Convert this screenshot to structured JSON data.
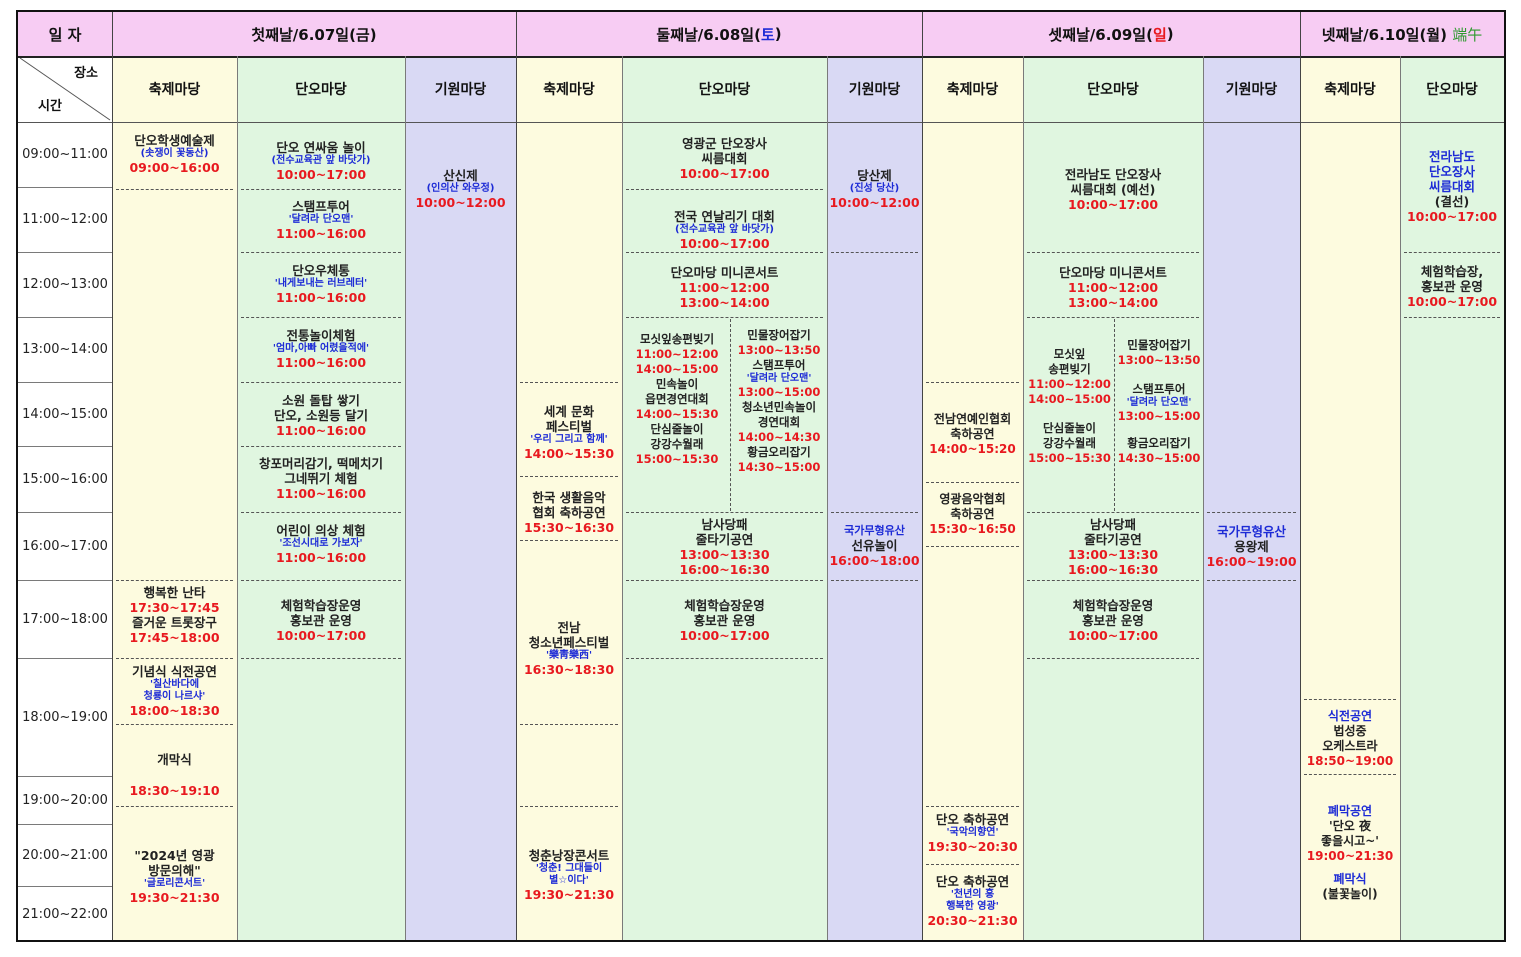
{
  "header": {
    "date_label": "일 자",
    "day1": {
      "text": "첫째날/6.07일(금)"
    },
    "day2": {
      "prefix": "둘째날/6.08일(",
      "mark": "토",
      "suffix": ")"
    },
    "day3": {
      "prefix": "셋째날/6.09일(",
      "mark": "일",
      "suffix": ")"
    },
    "day4": {
      "text": "넷째날/6.10일(월)",
      "extra": "端午"
    }
  },
  "corner": {
    "place": "장소",
    "time": "시간"
  },
  "venues": {
    "festival": "축제마당",
    "dano": "단오마당",
    "prayer": "기원마당"
  },
  "times": [
    "09:00~11:00",
    "11:00~12:00",
    "12:00~13:00",
    "13:00~14:00",
    "14:00~15:00",
    "15:00~16:00",
    "16:00~17:00",
    "17:00~18:00",
    "18:00~19:00",
    "19:00~20:00",
    "20:00~21:00",
    "21:00~22:00"
  ],
  "events": {
    "d1f_1": {
      "t1": "단오학생예술제",
      "b": "(솟쟁이 꽃동산)",
      "r": "09:00~16:00"
    },
    "d1f_2": {
      "t1": "행복한 난타",
      "r1": "17:30~17:45",
      "t2": "즐거운 트롯장구",
      "r2": "17:45~18:00"
    },
    "d1f_3": {
      "t1": "기념식 식전공연",
      "b1": "'칠산바다에",
      "b2": "청룡이 나르샤'",
      "r": "18:00~18:30"
    },
    "d1f_4": {
      "t1": "개막식",
      "r": "18:30~19:10"
    },
    "d1f_5": {
      "t1": "\"2024년 영광",
      "t2": "방문의해\"",
      "b": "'글로리콘서트'",
      "r": "19:30~21:30"
    },
    "d1d_1": {
      "t1": "단오 연싸움 놀이",
      "b": "(전수교육관 앞 바닷가)",
      "r": "10:00~17:00"
    },
    "d1d_2": {
      "t1": "스탬프투어",
      "b": "'달려라 단오맨'",
      "r": "11:00~16:00"
    },
    "d1d_3": {
      "t1": "단오우체통",
      "b": "'내게보내는 러브레터'",
      "r": "11:00~16:00"
    },
    "d1d_4": {
      "t1": "전통놀이체험",
      "b": "'엄마,아빠 어렸을적에'",
      "r": "11:00~16:00"
    },
    "d1d_5": {
      "t1": "소원 돌탑 쌓기",
      "t2": "단오, 소원등 달기",
      "r": "11:00~16:00"
    },
    "d1d_6": {
      "t1": "창포머리감기, 떡메치기",
      "t2": "그네뛰기 체험",
      "r": "11:00~16:00"
    },
    "d1d_7": {
      "t1": "어린이 의상 체험",
      "b": "'조선시대로 가보자'",
      "r": "11:00~16:00"
    },
    "d1d_8": {
      "t1": "체험학습장운영",
      "t2": "홍보관 운영",
      "r": "10:00~17:00"
    },
    "d1p_1": {
      "t1": "산신제",
      "b": "(인의산 와우정)",
      "r": "10:00~12:00"
    },
    "d2f_1": {
      "t1": "세계 문화",
      "t2": "페스티벌",
      "b": "'우리 그리고 함께'",
      "r": "14:00~15:30"
    },
    "d2f_2": {
      "t1": "한국 생활음악",
      "t2": "협회 축하공연",
      "r": "15:30~16:30"
    },
    "d2f_3": {
      "t1": "전남",
      "t2": "청소년페스티벌",
      "b": "'樂靑樂西'",
      "r": "16:30~18:30"
    },
    "d2f_4": {
      "t1": "청춘낭장콘서트",
      "b1": "'청춘! 그대들이",
      "b2": "별☆이다'",
      "r": "19:30~21:30"
    },
    "d2d_1": {
      "t1": "영광군 단오장사",
      "t2": "씨름대회",
      "r": "10:00~17:00"
    },
    "d2d_2": {
      "t1": "전국 연날리기 대회",
      "b": "(전수교육관 앞 바닷가)",
      "r": "10:00~17:00"
    },
    "d2d_3": {
      "t1": "단오마당 미니콘서트",
      "r1": "11:00~12:00",
      "r2": "13:00~14:00"
    },
    "d2d_4a": {
      "t1": "모싯잎송편빚기",
      "r1": "11:00~12:00",
      "r2": "14:00~15:00",
      "t2": "민속놀이",
      "t3": "읍면경연대회",
      "r3": "14:00~15:30",
      "t4": "단심줄놀이",
      "t5": "강강수월래",
      "r4": "15:00~15:30"
    },
    "d2d_4b": {
      "t1": "민물장어잡기",
      "r1": "13:00~13:50",
      "t2": "스탬프투어",
      "b": "'달려라 단오맨'",
      "r2": "13:00~15:00",
      "t3": "청소년민속놀이",
      "t4": "경연대회",
      "r3": "14:00~14:30",
      "t5": "황금오리잡기",
      "r4": "14:30~15:00"
    },
    "d2d_5": {
      "t1": "남사당패",
      "t2": "줄타기공연",
      "r1": "13:00~13:30",
      "r2": "16:00~16:30"
    },
    "d2d_6": {
      "t1": "체험학습장운영",
      "t2": "홍보관 운영",
      "r": "10:00~17:00"
    },
    "d2p_1": {
      "t1": "당산제",
      "b": "(진성 당산)",
      "r": "10:00~12:00"
    },
    "d2p_2": {
      "b": "국가무형유산",
      "t1": "선유놀이",
      "r": "16:00~18:00"
    },
    "d3f_1": {
      "t1": "전남연예인협회",
      "t2": "축하공연",
      "r": "14:00~15:20"
    },
    "d3f_2": {
      "t1": "영광음악협회",
      "t2": "축하공연",
      "r": "15:30~16:50"
    },
    "d3f_3": {
      "t1": "단오 축하공연",
      "b": "'국악의향연'",
      "r": "19:30~20:30"
    },
    "d3f_4": {
      "t1": "단오 축하공연",
      "b1": "'천년의 흥",
      "b2": "행복한 영광'",
      "r": "20:30~21:30"
    },
    "d3d_1": {
      "t1": "전라남도 단오장사",
      "t2": "씨름대회 (예선)",
      "r": "10:00~17:00"
    },
    "d3d_2": {
      "t1": "단오마당 미니콘서트",
      "r1": "11:00~12:00",
      "r2": "13:00~14:00"
    },
    "d3d_3a": {
      "t1": "모싯잎",
      "t2": "송편빚기",
      "r1": "11:00~12:00",
      "r2": "14:00~15:00",
      "t3": "단심줄놀이",
      "t4": "강강수월래",
      "r3": "15:00~15:30"
    },
    "d3d_3b": {
      "t1": "민물장어잡기",
      "r1": "13:00~13:50",
      "t2": "스탬프투어",
      "b": "'달려라 단오맨'",
      "r2": "13:00~15:00",
      "t3": "황금오리잡기",
      "r3": "14:30~15:00"
    },
    "d3d_4": {
      "t1": "남사당패",
      "t2": "줄타기공연",
      "r1": "13:00~13:30",
      "r2": "16:00~16:30"
    },
    "d3d_5": {
      "t1": "체험학습장운영",
      "t2": "홍보관 운영",
      "r": "10:00~17:00"
    },
    "d3p_1": {
      "b": "국가무형유산",
      "t1": "용왕제",
      "r": "16:00~19:00"
    },
    "d4f_1": {
      "b1": "식전공연",
      "t1": "법성중",
      "t2": "오케스트라",
      "r": "18:50~19:00"
    },
    "d4f_2": {
      "b1": "폐막공연",
      "t1": "'단오 夜",
      "t2": "좋을시고~'",
      "r": "19:00~21:30",
      "b2": "폐막식",
      "t3": "(불꽃놀이)"
    },
    "d4d_1": {
      "b1": "전라남도",
      "b2": "단오장사",
      "b3": "씨름대회",
      "t1": "(결선)",
      "r": "10:00~17:00"
    },
    "d4d_2": {
      "t1": "체험학습장,",
      "t2": "홍보관 운영",
      "r": "10:00~17:00"
    }
  }
}
